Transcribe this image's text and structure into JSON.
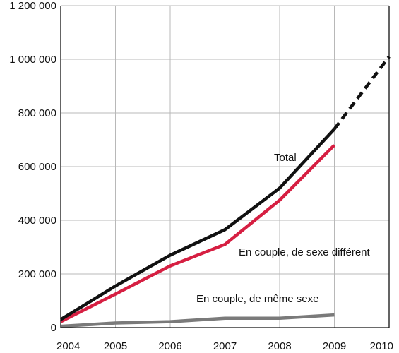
{
  "chart_data": {
    "type": "line",
    "x": [
      2004,
      2005,
      2006,
      2007,
      2008,
      2009,
      2010
    ],
    "x_tick_labels": [
      "2004",
      "2005",
      "2006",
      "2007",
      "2008",
      "2009",
      "2010"
    ],
    "y_tick_labels": [
      "0",
      "200 000",
      "400 000",
      "600 000",
      "800 000",
      "1 000 000",
      "1 200 000"
    ],
    "y_ticks": [
      0,
      200000,
      400000,
      600000,
      800000,
      1000000,
      1200000
    ],
    "xlim": [
      2004,
      2010
    ],
    "ylim": [
      0,
      1200000
    ],
    "grid": true,
    "series": [
      {
        "name": "Total",
        "color": "#111111",
        "x": [
          2004,
          2005,
          2006,
          2007,
          2008,
          2009
        ],
        "values": [
          30000,
          155000,
          270000,
          365000,
          520000,
          740000
        ],
        "projection": {
          "x": [
            2009,
            2010
          ],
          "values": [
            740000,
            1010000
          ],
          "line_style": "dashed"
        }
      },
      {
        "name": "En couple, de sexe différent",
        "color": "#d61f42",
        "x": [
          2004,
          2005,
          2006,
          2007,
          2008,
          2009
        ],
        "values": [
          22000,
          125000,
          230000,
          310000,
          475000,
          680000
        ]
      },
      {
        "name": "En couple, de même sexe",
        "color": "#7a7a7a",
        "x": [
          2004,
          2005,
          2006,
          2007,
          2008,
          2009
        ],
        "values": [
          5000,
          17000,
          22000,
          35000,
          35000,
          47000
        ]
      }
    ]
  }
}
